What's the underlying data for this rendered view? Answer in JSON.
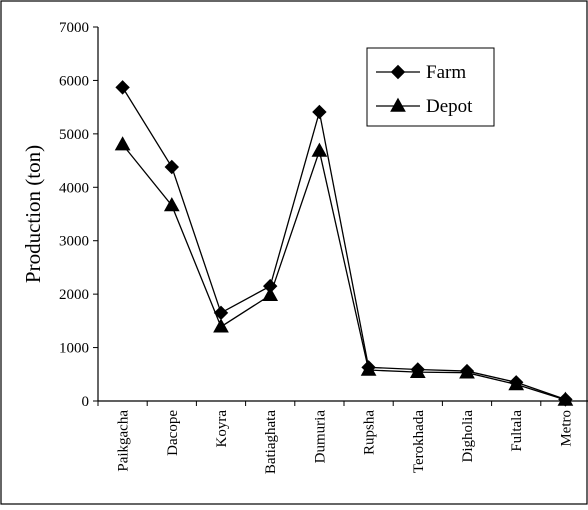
{
  "chart_data": {
    "type": "line",
    "title": "",
    "xlabel": "",
    "ylabel": "Production (ton)",
    "categories": [
      "Paikgacha",
      "Dacope",
      "Koyra",
      "Batiaghata",
      "Dumuria",
      "Rupsha",
      "Terokhada",
      "Digholia",
      "Fultala",
      "Metro"
    ],
    "ylim": [
      0,
      7000
    ],
    "yticks": [
      "0",
      "1000",
      "2000",
      "3000",
      "4000",
      "5000",
      "6000",
      "7000"
    ],
    "grid": false,
    "legend_position": "top-right",
    "series": [
      {
        "name": "Farm",
        "marker": "diamond",
        "values": [
          5870,
          4380,
          1650,
          2150,
          5410,
          630,
          590,
          560,
          350,
          30
        ]
      },
      {
        "name": "Depot",
        "marker": "triangle",
        "values": [
          4800,
          3660,
          1390,
          1980,
          4680,
          580,
          540,
          530,
          310,
          20
        ]
      }
    ]
  },
  "colors": {
    "line": "#000000",
    "background": "#ffffff"
  }
}
